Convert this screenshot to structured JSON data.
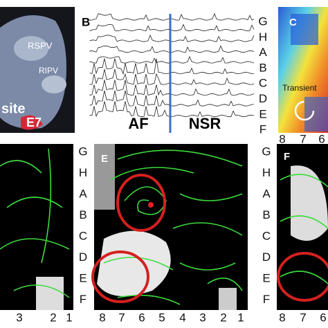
{
  "panel_a": {
    "labels": [
      "RSPV",
      "RIPV",
      "site",
      "E7"
    ]
  },
  "panel_b": {
    "letter": "B",
    "labels": [
      "AF",
      "NSR"
    ]
  },
  "panel_c": {
    "letter": "C",
    "annotation": "Transient",
    "rows": [
      "G",
      "H",
      "A",
      "B",
      "C",
      "D",
      "E",
      "F"
    ],
    "cols": [
      "8",
      "7",
      "6"
    ]
  },
  "panel_d": {
    "cols": [
      "3",
      "2",
      "1"
    ]
  },
  "panel_e": {
    "letter": "E",
    "rows": [
      "G",
      "H",
      "A",
      "B",
      "C",
      "D",
      "E",
      "F"
    ],
    "cols": [
      "8",
      "7",
      "6",
      "5",
      "4",
      "3",
      "2",
      "1"
    ]
  },
  "panel_f": {
    "letter": "F",
    "rows": [
      "G",
      "H",
      "A",
      "B",
      "C",
      "D",
      "E",
      "F"
    ],
    "cols": [
      "8",
      "7",
      "6"
    ]
  }
}
